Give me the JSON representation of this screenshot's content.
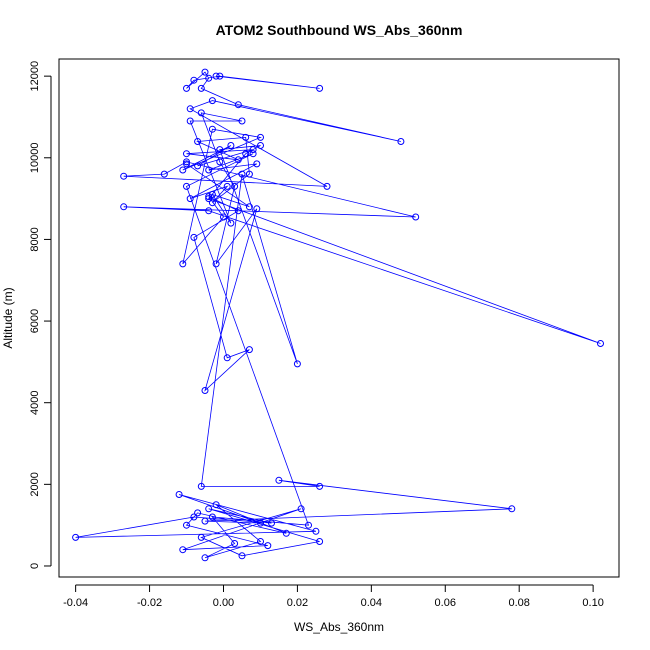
{
  "chart_data": {
    "type": "line",
    "title": "ATOM2 Southbound WS_Abs_360nm",
    "xlabel": "WS_Abs_360nm",
    "ylabel": "Altitude (m)",
    "xlim": [
      -0.0445,
      0.107
    ],
    "ylim": [
      -270,
      12420
    ],
    "xticks": [
      -0.04,
      -0.02,
      0.0,
      0.02,
      0.04,
      0.06,
      0.08,
      0.1
    ],
    "xtick_labels": [
      "-0.04",
      "-0.02",
      "0.00",
      "0.02",
      "0.04",
      "0.06",
      "0.08",
      "0.10"
    ],
    "yticks": [
      0,
      2000,
      4000,
      6000,
      8000,
      10000,
      12000
    ],
    "ytick_labels": [
      "0",
      "2000",
      "4000",
      "6000",
      "8000",
      "10000",
      "12000"
    ],
    "grid": false,
    "series_color": "#0000ff",
    "marker": "open-circle",
    "series": [
      {
        "x": [
          -0.002,
          0.026,
          -0.001,
          -0.008,
          -0.01,
          -0.005,
          -0.004,
          -0.006,
          0.004,
          0.048,
          -0.003,
          -0.009,
          0.028,
          -0.027,
          -0.016,
          -0.01,
          0.052,
          -0.027,
          -0.004,
          0.102,
          -0.004,
          0.006,
          0.01,
          -0.001,
          0.02,
          0.005,
          -0.006,
          0.026,
          0.015,
          0.078,
          -0.005,
          0.01,
          -0.012,
          0.025,
          -0.04,
          -0.008,
          0.013,
          -0.004,
          0.026,
          0.005,
          -0.006,
          0.021,
          -0.011,
          0.012,
          -0.01,
          -0.007,
          0.017,
          -0.002,
          0.01,
          -0.005,
          0.003,
          -0.003,
          0.023,
          -0.01,
          0.008,
          -0.004,
          0.009,
          -0.009,
          0.001,
          -0.003,
          0.007,
          0.006,
          -0.007,
          0.004,
          -0.01,
          0.008,
          -0.007,
          0.002,
          -0.011,
          0.01,
          -0.003,
          -0.011,
          0.0,
          -0.004,
          0.004,
          -0.008,
          0.001,
          0.007,
          -0.005,
          0.009,
          -0.002,
          0.003,
          -0.001,
          -0.006,
          0.005,
          -0.009,
          0.002,
          -0.003,
          0.007,
          -0.01
        ],
        "y": [
          12000,
          11700,
          12000,
          11900,
          11700,
          12100,
          11950,
          11700,
          11300,
          10400,
          11400,
          11200,
          9300,
          9550,
          9600,
          9900,
          8550,
          8800,
          8700,
          5450,
          9000,
          10100,
          10300,
          10200,
          4950,
          9600,
          1950,
          1950,
          2100,
          1400,
          1100,
          1050,
          1750,
          850,
          700,
          1200,
          1050,
          1400,
          600,
          250,
          700,
          1400,
          400,
          500,
          1000,
          1300,
          800,
          1500,
          600,
          200,
          550,
          1200,
          1000,
          9300,
          10100,
          9700,
          9850,
          9000,
          9300,
          8900,
          9600,
          10500,
          10400,
          9950,
          10100,
          10200,
          9800,
          10300,
          9700,
          10500,
          10700,
          7400,
          8550,
          9050,
          8700,
          8050,
          5100,
          5300,
          4300,
          8750,
          7400,
          9300,
          9900,
          11100,
          10900,
          10900,
          8400,
          9100,
          8800,
          9850
        ]
      }
    ]
  }
}
